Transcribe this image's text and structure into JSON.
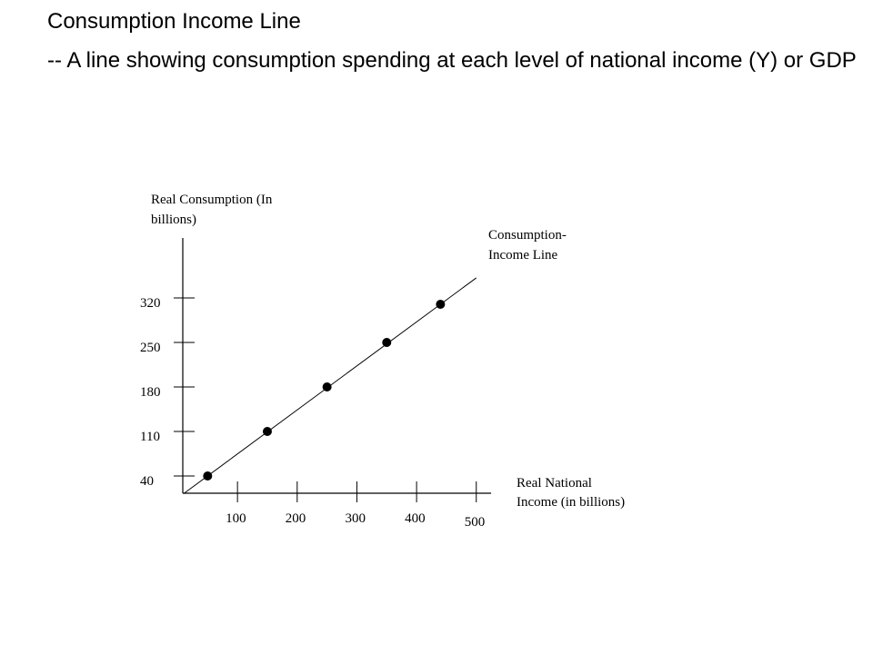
{
  "slide": {
    "title": "Consumption Income Line",
    "bullet": "-- A line showing consumption spending at each level of national income (Y) or GDP"
  },
  "chart_data": {
    "type": "line",
    "ylabel_lines": [
      "Real Consumption (In",
      "billions)"
    ],
    "xlabel_lines": [
      "Real National",
      "Income (in billions)"
    ],
    "line_label_lines": [
      "Consumption-",
      "Income Line"
    ],
    "x_ticks": [
      100,
      200,
      300,
      400,
      500
    ],
    "y_ticks": [
      40,
      110,
      180,
      250,
      320
    ],
    "points": [
      {
        "x": 50,
        "y": 40
      },
      {
        "x": 150,
        "y": 110
      },
      {
        "x": 250,
        "y": 180
      },
      {
        "x": 350,
        "y": 250
      },
      {
        "x": 440,
        "y": 310
      }
    ],
    "line": {
      "x_start": 10,
      "x_end": 500
    },
    "xlim": [
      0,
      500
    ],
    "ylim": [
      0,
      320
    ],
    "grid": false
  }
}
